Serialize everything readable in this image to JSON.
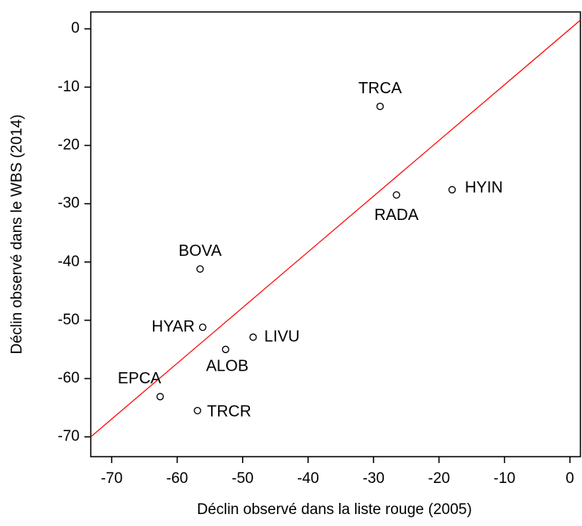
{
  "chart_data": {
    "type": "scatter",
    "x_label": "Déclin observé dans la liste rouge (2005)",
    "y_label": "Déclin observé dans le WBS (2014)",
    "point_labels": [
      "TRCA",
      "HYIN",
      "RADA",
      "BOVA",
      "HYAR",
      "LIVU",
      "ALOB",
      "EPCA",
      "TRCR"
    ],
    "x": [
      -29.0,
      -18.0,
      -26.5,
      -56.5,
      -56.1,
      -48.4,
      -52.6,
      -62.6,
      -56.9
    ],
    "values": [
      -13.3,
      -27.6,
      -28.5,
      -41.2,
      -51.2,
      -52.9,
      -55.0,
      -63.1,
      -65.5
    ],
    "color": "#000000",
    "reference_line": {
      "x": [
        -73.2,
        1.6
      ],
      "y": [
        -70,
        1.5
      ],
      "color": "#ff0000"
    },
    "xlim": [
      -73.2,
      1.6
    ],
    "ylim": [
      -73.4,
      2.9
    ],
    "xticks": [
      -70,
      -60,
      -50,
      -40,
      -30,
      -20,
      -10,
      0
    ],
    "yticks": [
      0,
      -10,
      -20,
      -30,
      -40,
      -50,
      -60,
      -70
    ]
  }
}
